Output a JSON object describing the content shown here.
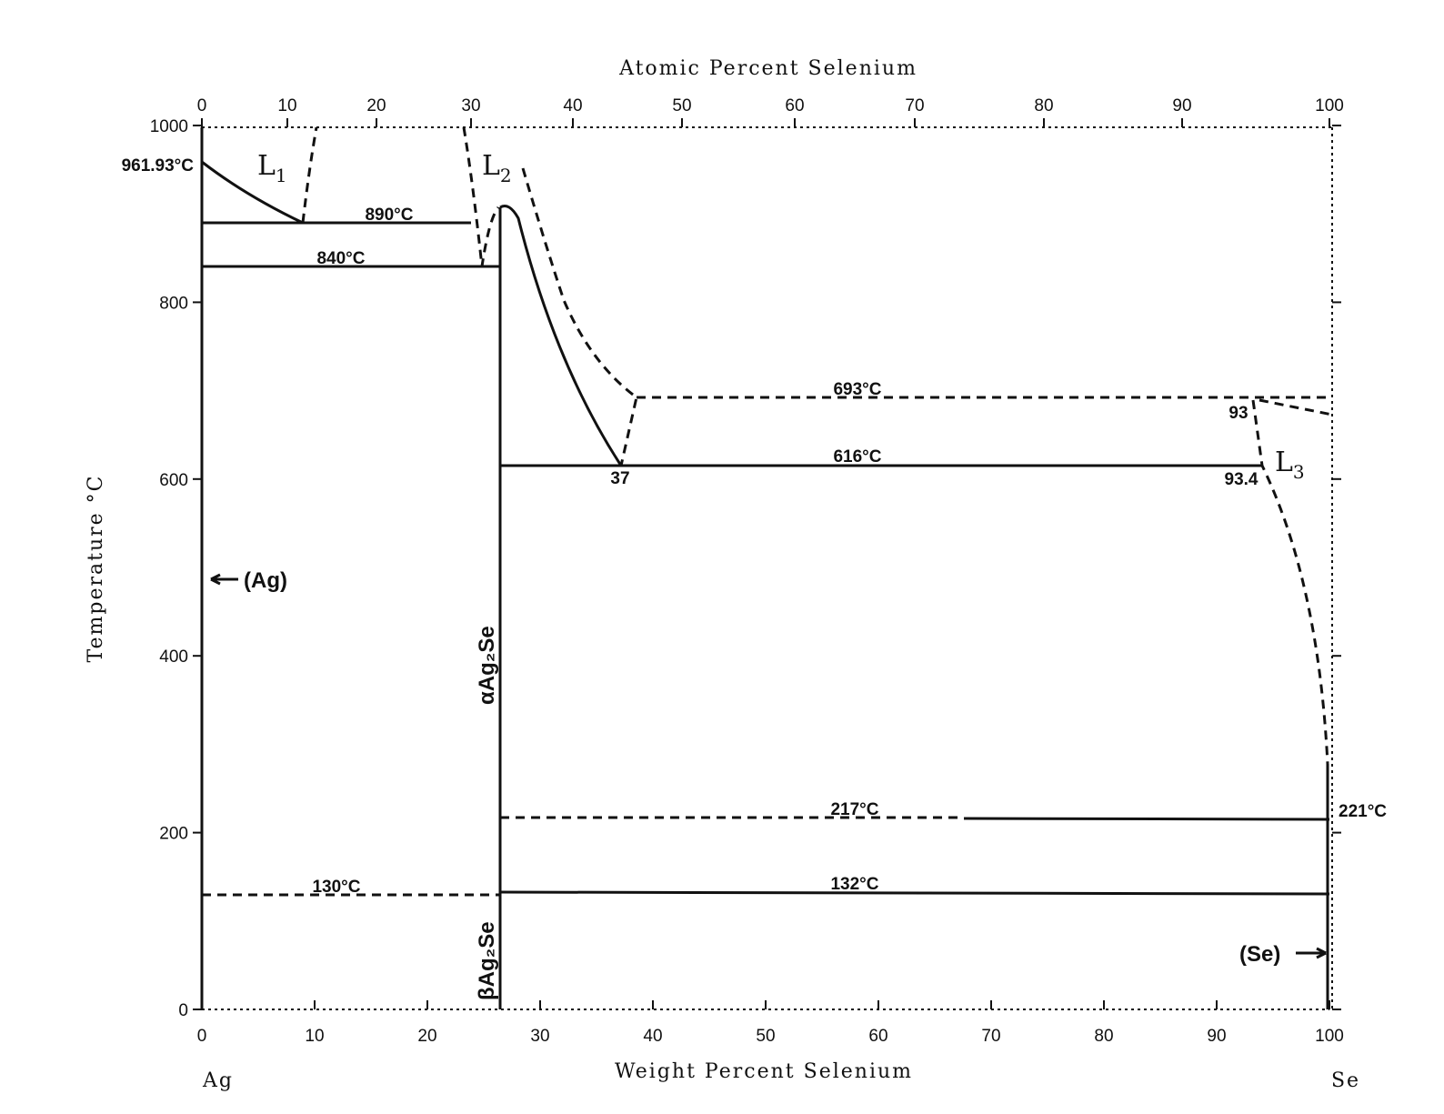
{
  "top_axis": {
    "title": "Atomic Percent Selenium",
    "ticks": [
      "0",
      "10",
      "20",
      "30",
      "40",
      "50",
      "60",
      "70",
      "80",
      "90",
      "100"
    ]
  },
  "bottom_axis": {
    "title": "Weight Percent Selenium",
    "ticks": [
      "0",
      "10",
      "20",
      "30",
      "40",
      "50",
      "60",
      "70",
      "80",
      "90",
      "100"
    ],
    "left_element": "Ag",
    "right_element": "Se"
  },
  "y_axis": {
    "title": "Temperature °C",
    "ticks": [
      "0",
      "200",
      "400",
      "600",
      "800",
      "1000"
    ]
  },
  "labels": {
    "t961": "961.93°C",
    "t890": "890°C",
    "t840": "840°C",
    "t693": "693°C",
    "t616": "616°C",
    "t217": "217°C",
    "t221": "221°C",
    "t130": "130°C",
    "t132": "132°C",
    "c37": "37",
    "c93": "93",
    "c934": "93.4",
    "ag": "(Ag)",
    "se": "(Se)",
    "alpha": "αAg₂Se",
    "beta": "βAg₂Se"
  },
  "phases": {
    "l1": "L",
    "l1_sub": "1",
    "l2": "L",
    "l2_sub": "2",
    "l3": "L",
    "l3_sub": "3"
  }
}
